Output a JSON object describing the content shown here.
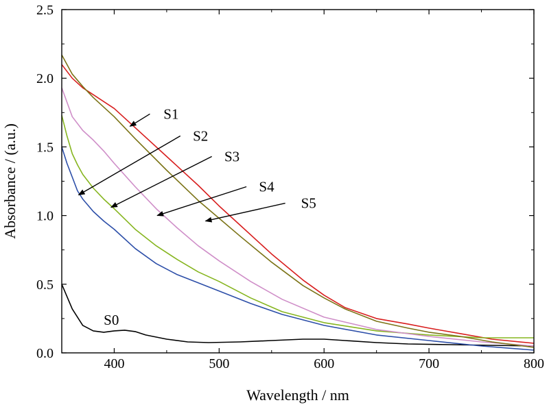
{
  "chart_data": {
    "type": "line",
    "title": "",
    "xlabel": "Wavelength / nm",
    "ylabel": "Absorbance / (a.u.)",
    "xlim": [
      350,
      800
    ],
    "ylim": [
      0,
      2.5
    ],
    "xticks": [
      400,
      500,
      600,
      700,
      800
    ],
    "xtick_labels": [
      "400",
      "500",
      "600",
      "700",
      "800"
    ],
    "yticks": [
      0,
      0.5,
      1.0,
      1.5,
      2.0,
      2.5
    ],
    "ytick_labels": [
      "0.0",
      "0.5",
      "1.0",
      "1.5",
      "2.0",
      "2.5"
    ],
    "grid": false,
    "legend": "none",
    "series": [
      {
        "name": "S0",
        "color": "#000000",
        "x": [
          350,
          360,
          370,
          380,
          390,
          400,
          410,
          420,
          430,
          450,
          470,
          490,
          520,
          550,
          580,
          600,
          620,
          650,
          680,
          720,
          760,
          800
        ],
        "y": [
          0.5,
          0.32,
          0.2,
          0.16,
          0.15,
          0.16,
          0.165,
          0.155,
          0.13,
          0.1,
          0.08,
          0.075,
          0.08,
          0.09,
          0.1,
          0.1,
          0.09,
          0.075,
          0.065,
          0.06,
          0.055,
          0.05
        ]
      },
      {
        "name": "S1",
        "color": "#d81e1e",
        "x": [
          350,
          360,
          370,
          380,
          400,
          420,
          450,
          480,
          500,
          520,
          550,
          580,
          600,
          620,
          650,
          680,
          700,
          730,
          760,
          800
        ],
        "y": [
          2.1,
          2.0,
          1.93,
          1.88,
          1.78,
          1.64,
          1.43,
          1.22,
          1.07,
          0.93,
          0.72,
          0.53,
          0.42,
          0.33,
          0.25,
          0.21,
          0.18,
          0.14,
          0.1,
          0.07
        ]
      },
      {
        "name": "S2",
        "color": "#2c4ea8",
        "x": [
          350,
          355,
          360,
          365,
          370,
          380,
          390,
          400,
          420,
          440,
          460,
          480,
          500,
          530,
          560,
          600,
          650,
          700,
          750,
          800
        ],
        "y": [
          1.5,
          1.38,
          1.28,
          1.18,
          1.12,
          1.03,
          0.96,
          0.9,
          0.76,
          0.65,
          0.57,
          0.51,
          0.45,
          0.36,
          0.28,
          0.2,
          0.13,
          0.09,
          0.05,
          0.02
        ]
      },
      {
        "name": "S3",
        "color": "#86b51f",
        "x": [
          350,
          355,
          360,
          365,
          370,
          380,
          390,
          400,
          420,
          440,
          460,
          480,
          500,
          530,
          560,
          600,
          650,
          700,
          750,
          800
        ],
        "y": [
          1.73,
          1.58,
          1.45,
          1.37,
          1.3,
          1.2,
          1.12,
          1.05,
          0.9,
          0.78,
          0.68,
          0.59,
          0.52,
          0.4,
          0.3,
          0.22,
          0.16,
          0.13,
          0.11,
          0.11
        ]
      },
      {
        "name": "S4",
        "color": "#cf8ec8",
        "x": [
          350,
          360,
          370,
          380,
          390,
          400,
          420,
          440,
          460,
          480,
          500,
          530,
          560,
          600,
          650,
          700,
          750,
          800
        ],
        "y": [
          1.93,
          1.72,
          1.62,
          1.55,
          1.47,
          1.38,
          1.21,
          1.05,
          0.91,
          0.78,
          0.67,
          0.52,
          0.39,
          0.26,
          0.17,
          0.12,
          0.08,
          0.05
        ]
      },
      {
        "name": "S5",
        "color": "#7b7316",
        "x": [
          350,
          360,
          370,
          380,
          400,
          420,
          450,
          480,
          500,
          520,
          550,
          580,
          600,
          620,
          650,
          680,
          700,
          730,
          760,
          800
        ],
        "y": [
          2.17,
          2.03,
          1.94,
          1.86,
          1.72,
          1.56,
          1.33,
          1.11,
          0.98,
          0.85,
          0.66,
          0.49,
          0.4,
          0.32,
          0.23,
          0.18,
          0.15,
          0.12,
          0.08,
          0.04
        ]
      }
    ],
    "annotations": [
      {
        "label": "S0",
        "arrow": false,
        "text_at": [
          390,
          0.24
        ]
      },
      {
        "label": "S1",
        "arrow": true,
        "text_at": [
          447,
          1.74
        ],
        "tail": [
          434,
          1.74
        ],
        "head": [
          415,
          1.65
        ]
      },
      {
        "label": "S2",
        "arrow": true,
        "text_at": [
          475,
          1.58
        ],
        "tail": [
          463,
          1.58
        ],
        "head": [
          366,
          1.15
        ]
      },
      {
        "label": "S3",
        "arrow": true,
        "text_at": [
          505,
          1.43
        ],
        "tail": [
          493,
          1.43
        ],
        "head": [
          397,
          1.06
        ]
      },
      {
        "label": "S4",
        "arrow": true,
        "text_at": [
          538,
          1.21
        ],
        "tail": [
          526,
          1.21
        ],
        "head": [
          441,
          1.0
        ]
      },
      {
        "label": "S5",
        "arrow": true,
        "text_at": [
          578,
          1.09
        ],
        "tail": [
          563,
          1.09
        ],
        "head": [
          487,
          0.96
        ]
      }
    ]
  }
}
